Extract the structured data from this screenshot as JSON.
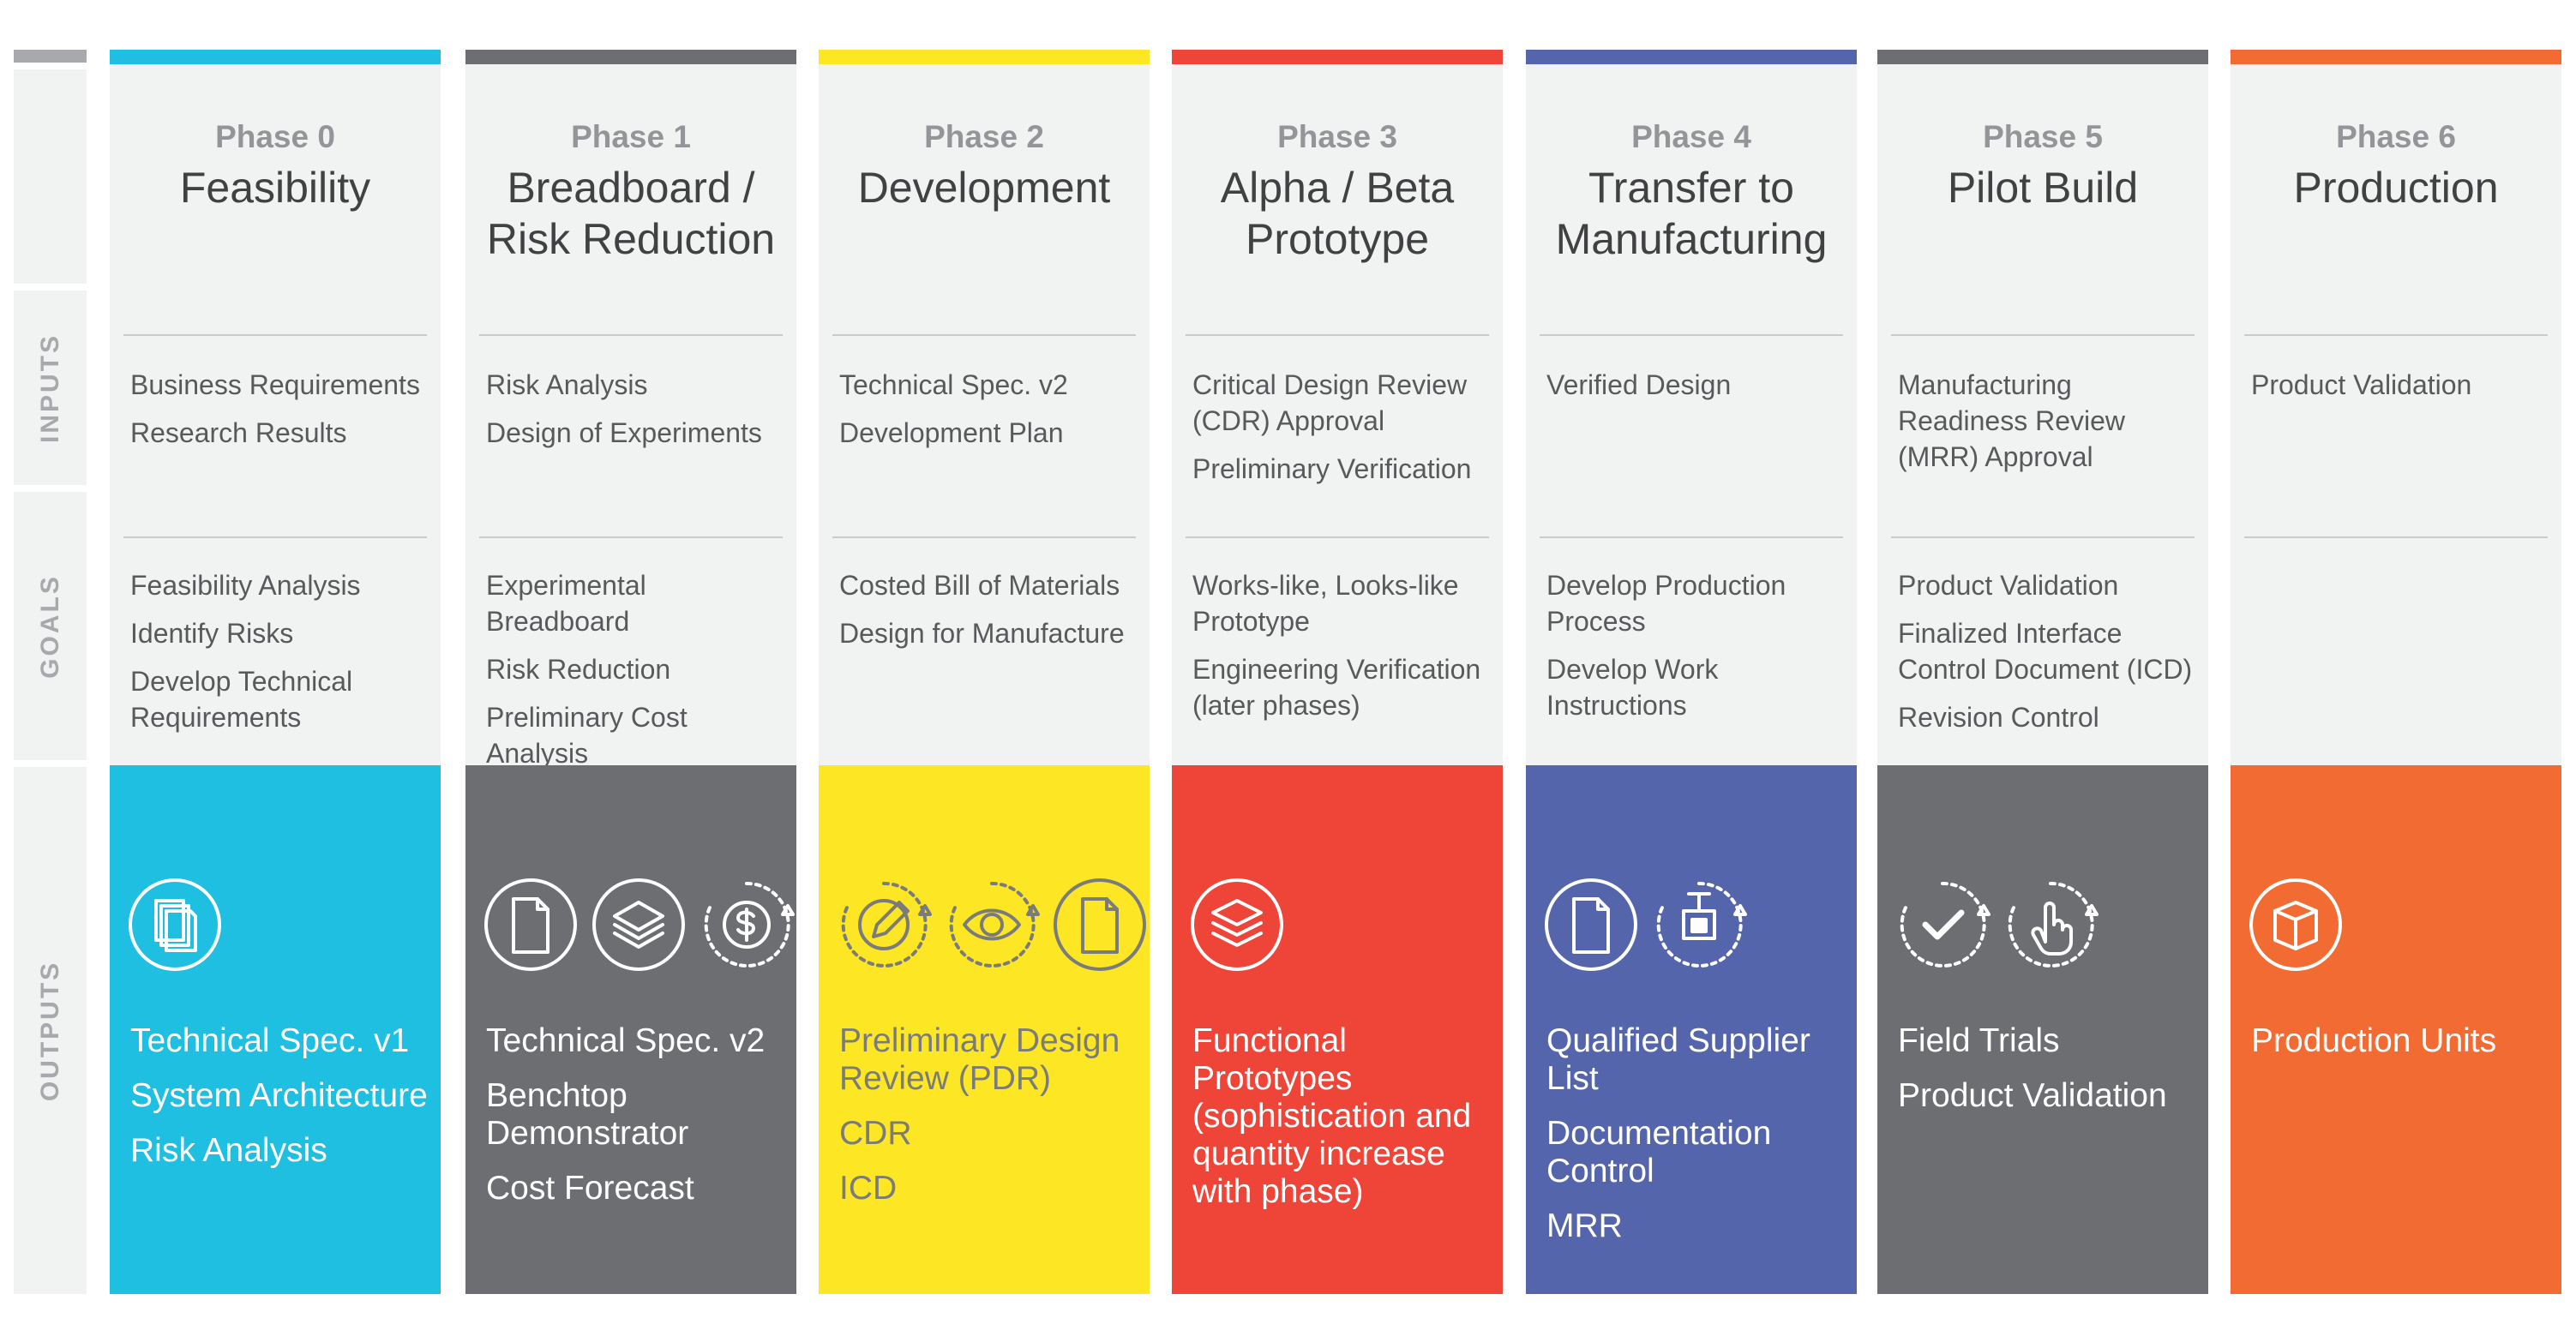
{
  "sidebar": {
    "inputs_label": "INPUTS",
    "goals_label": "GOALS",
    "outputs_label": "OUTPUTS"
  },
  "phases": [
    {
      "number": "Phase 0",
      "title": "Feasibility",
      "color": "#1ebfe0",
      "text_color": "#ffffff",
      "inputs": [
        "Business Requirements",
        "Research Results"
      ],
      "goals": [
        "Feasibility Analysis",
        "Identify Risks",
        "Develop Technical Requirements"
      ],
      "outputs": [
        "Technical Spec. v1",
        "System Architecture",
        "Risk Analysis"
      ],
      "icons": [
        "documents-icon"
      ]
    },
    {
      "number": "Phase 1",
      "title": "Breadboard /\nRisk Reduction",
      "color": "#6d6e71",
      "text_color": "#ffffff",
      "inputs": [
        "Risk Analysis",
        "Design of Experiments"
      ],
      "goals": [
        "Experimental Breadboard",
        "Risk Reduction",
        "Preliminary Cost Analysis"
      ],
      "outputs": [
        "Technical Spec. v2",
        "Benchtop Demonstrator",
        "Cost Forecast"
      ],
      "icons": [
        "document-icon",
        "layers-icon",
        "dollar-cycle-icon"
      ]
    },
    {
      "number": "Phase 2",
      "title": "Development",
      "color": "#fde725",
      "text_color": "#7a7b7d",
      "inputs": [
        "Technical Spec. v2",
        "Development Plan"
      ],
      "goals": [
        "Costed Bill of Materials",
        "Design for Manufacture"
      ],
      "outputs": [
        "Preliminary Design Review (PDR)",
        "CDR",
        "ICD"
      ],
      "icons": [
        "pencil-cycle-icon",
        "eye-cycle-icon",
        "document-icon"
      ]
    },
    {
      "number": "Phase 3",
      "title": "Alpha / Beta\nPrototype",
      "color": "#ef4438",
      "text_color": "#ffffff",
      "inputs": [
        "Critical Design Review (CDR) Approval",
        "Preliminary Verification"
      ],
      "goals": [
        "Works-like, Looks-like Prototype",
        "Engineering Verification (later phases)"
      ],
      "outputs": [
        "Functional Prototypes (sophistication and quantity increase with phase)"
      ],
      "icons": [
        "stack-icon"
      ]
    },
    {
      "number": "Phase 4",
      "title": "Transfer to\nManufacturing",
      "color": "#5465ab",
      "text_color": "#ffffff",
      "inputs": [
        "Verified Design"
      ],
      "goals": [
        "Develop Production Process",
        "Develop Work Instructions"
      ],
      "outputs": [
        "Qualified Supplier List",
        "Documentation Control",
        "MRR"
      ],
      "icons": [
        "document-icon",
        "transfer-cycle-icon"
      ]
    },
    {
      "number": "Phase 5",
      "title": "Pilot Build",
      "color": "#6d6e71",
      "text_color": "#ffffff",
      "inputs": [
        "Manufacturing Readiness Review (MRR) Approval"
      ],
      "goals": [
        "Product Validation",
        "Finalized Interface Control Document (ICD)",
        "Revision Control"
      ],
      "outputs": [
        "Field Trials",
        "Product Validation"
      ],
      "icons": [
        "check-cycle-icon",
        "hand-cycle-icon"
      ]
    },
    {
      "number": "Phase 6",
      "title": "Production",
      "color": "#f26b33",
      "text_color": "#ffffff",
      "inputs": [
        "Product Validation"
      ],
      "goals": [],
      "outputs": [
        "Production Units"
      ],
      "icons": [
        "box-icon"
      ]
    }
  ]
}
